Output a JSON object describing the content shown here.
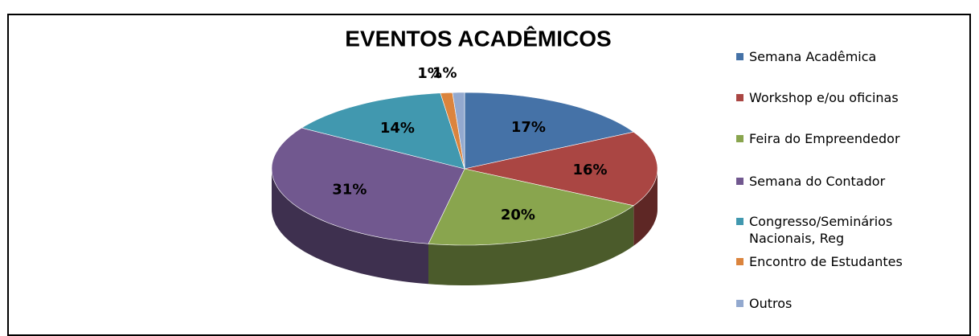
{
  "chart_data": {
    "type": "pie3d",
    "title": "EVENTOS ACADÊMICOS",
    "categories": [
      "Semana Acadêmica",
      "Workshop e/ou oficinas",
      "Feira do Empreendedor",
      "Semana do Contador",
      "Congresso/Seminários Nacionais, Reg",
      "Encontro de Estudantes",
      "Outros"
    ],
    "values": [
      17,
      16,
      20,
      31,
      14,
      1,
      1
    ],
    "value_labels": [
      "17%",
      "16%",
      "20%",
      "31%",
      "14%",
      "1%",
      "1%"
    ],
    "colors": [
      "#4572a7",
      "#aa4643",
      "#89a54e",
      "#71588f",
      "#4198af",
      "#db843d",
      "#93a9cf"
    ],
    "legend": "right"
  }
}
